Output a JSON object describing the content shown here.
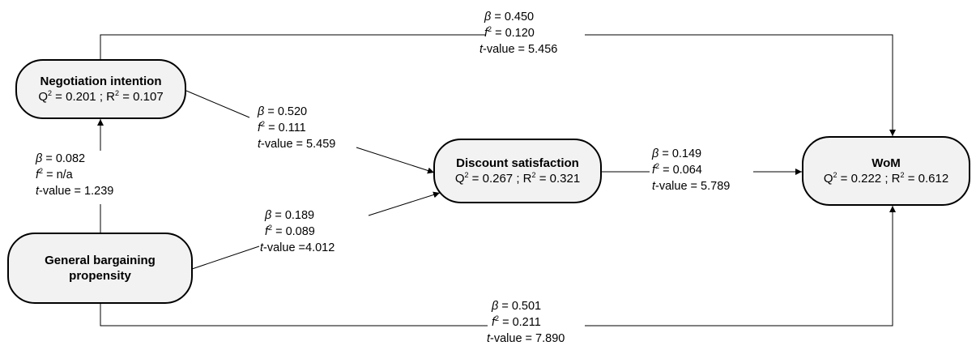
{
  "nodes": {
    "negotiation": {
      "name": "Negotiation intention",
      "q2": "0.201",
      "r2": "0.107"
    },
    "bargaining": {
      "name_line1": "General bargaining",
      "name_line2": "propensity"
    },
    "discount": {
      "name": "Discount satisfaction",
      "q2": "0.267",
      "r2": "0.321"
    },
    "wom": {
      "name": "WoM",
      "q2": "0.222",
      "r2": "0.612"
    }
  },
  "paths": {
    "neg_wom": {
      "beta": "0.450",
      "f2": "0.120",
      "t": " = 5.456"
    },
    "neg_disc": {
      "beta": "0.520",
      "f2": "0.111",
      "t": " = 5.459"
    },
    "barg_neg": {
      "beta": "0.082",
      "f2": "n/a",
      "t": " = 1.239"
    },
    "barg_disc": {
      "beta": "0.189",
      "f2": "0.089",
      "t": " =4.012"
    },
    "disc_wom": {
      "beta": "0.149",
      "f2": "0.064",
      "t": " = 5.789"
    },
    "barg_wom": {
      "beta": "0.501",
      "f2": "0.211",
      "t": " = 7.890"
    }
  },
  "symbols": {
    "beta": "β",
    "f": "f",
    "two": "2",
    "t": "t",
    "value": "-value",
    "eq": " = ",
    "q": "Q",
    "r": "R",
    "sep": " ; "
  }
}
